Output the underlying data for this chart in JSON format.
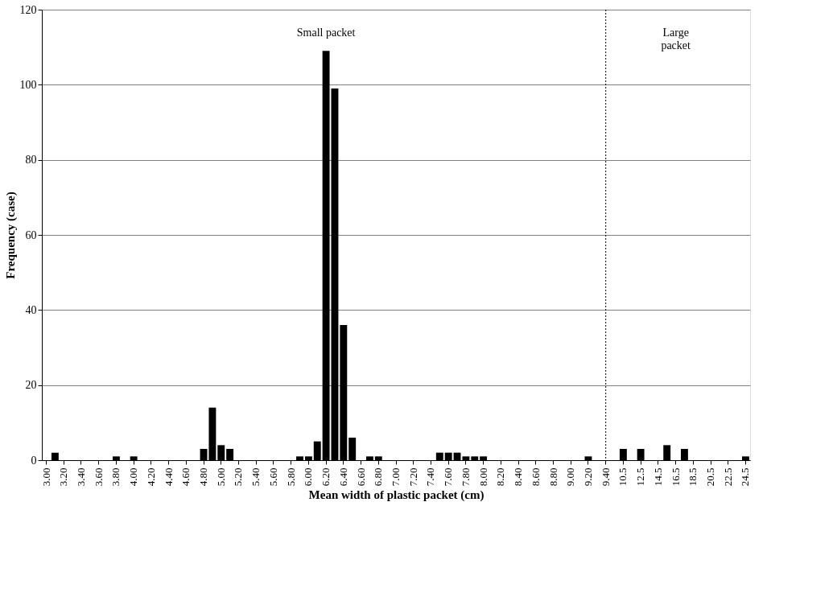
{
  "chart_data": {
    "type": "bar",
    "xlabel": "Mean width of plastic packet (cm)",
    "ylabel": "Frequency (case)",
    "categories": [
      "3.00",
      null,
      "3.20",
      null,
      "3.40",
      null,
      "3.60",
      null,
      "3.80",
      null,
      "4.00",
      null,
      "4.20",
      null,
      "4.40",
      null,
      "4.60",
      null,
      "4.80",
      null,
      "5.00",
      null,
      "5.20",
      null,
      "5.40",
      null,
      "5.60",
      null,
      "5.80",
      null,
      "6.00",
      null,
      "6.20",
      null,
      "6.40",
      null,
      "6.60",
      null,
      "6.80",
      null,
      "7.00",
      null,
      "7.20",
      null,
      "7.40",
      null,
      "7.60",
      null,
      "7.80",
      null,
      "8.00",
      null,
      "8.20",
      null,
      "8.40",
      null,
      "8.60",
      null,
      "8.80",
      null,
      "9.00",
      null,
      "9.20",
      null,
      "9.40",
      null,
      "10.5",
      null,
      "12.5",
      null,
      "14.5",
      null,
      "16.5",
      null,
      "18.5",
      null,
      "20.5",
      null,
      "22.5",
      null,
      "24.5"
    ],
    "values": [
      0,
      2,
      0,
      0,
      0,
      0,
      0,
      0,
      1,
      0,
      1,
      0,
      0,
      0,
      0,
      0,
      0,
      0,
      3,
      14,
      4,
      3,
      0,
      0,
      0,
      0,
      0,
      0,
      0,
      1,
      1,
      5,
      109,
      99,
      36,
      6,
      0,
      1,
      1,
      0,
      0,
      0,
      0,
      0,
      0,
      2,
      2,
      2,
      1,
      1,
      1,
      0,
      0,
      0,
      0,
      0,
      0,
      0,
      0,
      0,
      0,
      0,
      1,
      0,
      0,
      0,
      3,
      0,
      3,
      0,
      0,
      4,
      0,
      3,
      0,
      0,
      0,
      0,
      0,
      0,
      1
    ],
    "color": "#000000",
    "ylim": [
      0,
      120
    ],
    "yticks": [
      0,
      20,
      40,
      60,
      80,
      100,
      120
    ],
    "grid": "y",
    "ref_lines": [
      {
        "axis": "x",
        "value": "9.40",
        "line_style": "dotted",
        "color": "#000000"
      }
    ],
    "annotations": [
      "Small packet",
      "Large\npacket"
    ]
  }
}
